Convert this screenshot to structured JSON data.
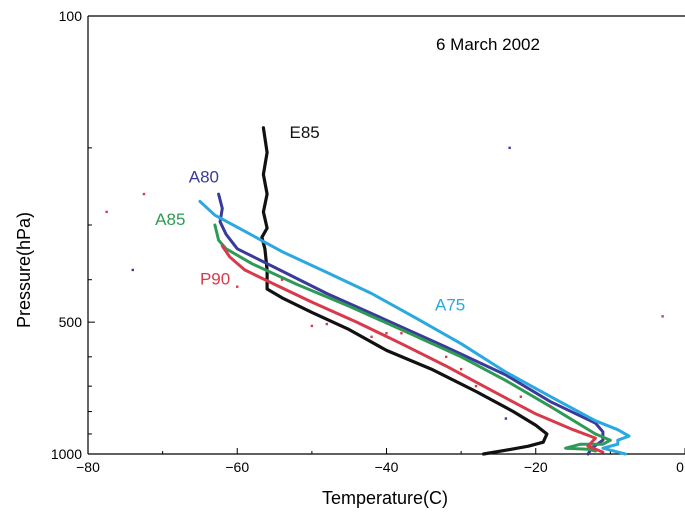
{
  "chart_data": {
    "type": "line",
    "title": "",
    "annotation": "6 March 2002",
    "xlabel": "Temperature(C)",
    "ylabel": "Pressure(hPa)",
    "xlim": [
      -80,
      0
    ],
    "ylim": [
      1000,
      100
    ],
    "yscale": "log",
    "xticks": [
      -80,
      -60,
      -40,
      -20,
      0
    ],
    "xtick_labels": [
      "−80",
      "−60",
      "−40",
      "−20",
      "0"
    ],
    "yticks_labeled": [
      100,
      500,
      1000
    ],
    "ytick_labels": [
      "100",
      "500",
      "1000"
    ],
    "grid": false,
    "series": [
      {
        "name": "E85",
        "color": "#111111",
        "x": [
          -56.5,
          -56,
          -56.5,
          -56,
          -56.5,
          -56,
          -56.7,
          -56.3,
          -56,
          -56,
          -54,
          -50,
          -45,
          -40,
          -34,
          -28,
          -23,
          -20,
          -18.5,
          -19,
          -21,
          -24,
          -27
        ],
        "y": [
          180,
          205,
          230,
          255,
          280,
          305,
          320,
          340,
          380,
          420,
          440,
          475,
          520,
          580,
          640,
          720,
          800,
          860,
          900,
          940,
          960,
          980,
          1000
        ]
      },
      {
        "name": "A80",
        "color": "#3a3a9a",
        "x": [
          -62.5,
          -62,
          -62.3,
          -61.5,
          -60,
          -55,
          -48,
          -40,
          -32,
          -24,
          -18,
          -12,
          -11,
          -11,
          -12.5,
          -13
        ],
        "y": [
          255,
          275,
          295,
          315,
          340,
          375,
          430,
          495,
          570,
          660,
          760,
          850,
          890,
          930,
          970,
          1000
        ]
      },
      {
        "name": "A85",
        "color": "#2e9a55",
        "x": [
          -63,
          -62.5,
          -61.5,
          -58,
          -52,
          -45,
          -38,
          -30,
          -24,
          -18,
          -12,
          -10,
          -11,
          -14,
          -16,
          -13,
          -12
        ],
        "y": [
          300,
          325,
          340,
          368,
          410,
          460,
          520,
          600,
          680,
          780,
          900,
          930,
          950,
          950,
          970,
          975,
          985
        ]
      },
      {
        "name": "P90",
        "color": "#d83a4a",
        "x": [
          -62,
          -61,
          -59,
          -55,
          -50,
          -44,
          -38,
          -32,
          -25,
          -20,
          -15,
          -12,
          -13,
          -11
        ],
        "y": [
          335,
          355,
          380,
          410,
          450,
          500,
          560,
          630,
          730,
          810,
          880,
          920,
          960,
          990
        ]
      },
      {
        "name": "A75",
        "color": "#2aa8e0",
        "x": [
          -65,
          -63,
          -59,
          -54,
          -48,
          -42,
          -36,
          -30,
          -24,
          -18,
          -12,
          -9,
          -7.5,
          -9,
          -9,
          -11,
          -9,
          -8
        ],
        "y": [
          265,
          285,
          310,
          345,
          385,
          430,
          490,
          560,
          650,
          740,
          840,
          880,
          910,
          930,
          950,
          970,
          990,
          1000
        ]
      }
    ],
    "scatter": {
      "name": "",
      "color": "#d83a4a",
      "x": [
        -72.5,
        -77.5,
        -60,
        -54,
        -50,
        -48,
        -42,
        -40,
        -38,
        -32,
        -30,
        -28,
        -22,
        -18,
        -3
      ],
      "y": [
        255,
        280,
        415,
        400,
        510,
        505,
        540,
        530,
        530,
        600,
        640,
        700,
        740,
        780,
        485
      ]
    },
    "scatter_blue": {
      "name": "",
      "color": "#3a3a9a",
      "x": [
        -74,
        -23.5,
        -24
      ],
      "y": [
        380,
        200,
        830
      ]
    }
  }
}
